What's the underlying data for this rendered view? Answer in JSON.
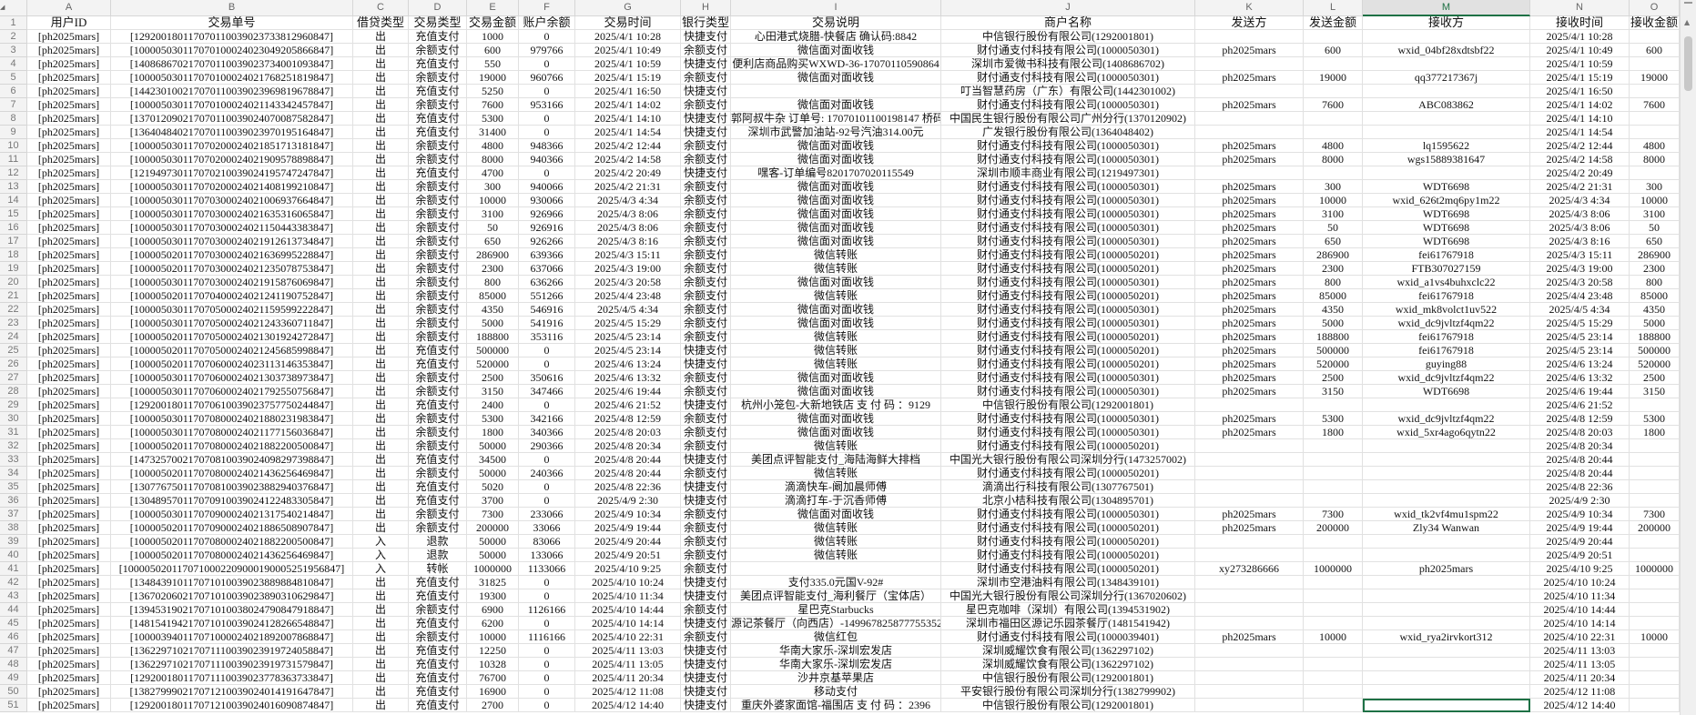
{
  "sheet": {
    "selected_column": "M",
    "accent_color": "#1e7145",
    "column_letters": [
      "A",
      "B",
      "C",
      "D",
      "E",
      "F",
      "G",
      "H",
      "I",
      "J",
      "K",
      "L",
      "M",
      "N",
      "O"
    ],
    "headers": [
      "用户ID",
      "交易单号",
      "借贷类型",
      "交易类型",
      "交易金额",
      "账户余额",
      "交易时间",
      "银行类型",
      "交易说明",
      "商户名称",
      "发送方",
      "发送金额",
      "接收方",
      "接收时间",
      "接收金额"
    ],
    "rows": [
      [
        "[ph2025mars]",
        "[129200180117070110039023733812960847]",
        "出",
        "充值支付",
        "1000",
        "0",
        "2025/4/1 10:28",
        "快捷支付",
        "心田港式烧腊-快餐店 确认码:8842",
        "中信银行股份有限公司(1292001801)",
        "",
        "",
        "",
        "2025/4/1 10:28",
        ""
      ],
      [
        "[ph2025mars]",
        "[100005030117070100024023049205866847]",
        "出",
        "余额支付",
        "600",
        "979766",
        "2025/4/1 10:49",
        "余额支付",
        "微信面对面收钱",
        "财付通支付科技有限公司(1000050301)",
        "ph2025mars",
        "600",
        "wxid_04bf28xdtsbf22",
        "2025/4/1 10:49",
        "600"
      ],
      [
        "[ph2025mars]",
        "[140868670217070110039023734001093847]",
        "出",
        "充值支付",
        "550",
        "0",
        "2025/4/1 10:59",
        "快捷支付",
        "便利店商品购买WXWD-36-17070110590864",
        "深圳市爱微书科技有限公司(1408686702)",
        "",
        "",
        "",
        "2025/4/1 10:59",
        ""
      ],
      [
        "[ph2025mars]",
        "[100005030117070100024021768251819847]",
        "出",
        "余额支付",
        "19000",
        "960766",
        "2025/4/1 15:19",
        "余额支付",
        "微信面对面收钱",
        "财付通支付科技有限公司(1000050301)",
        "ph2025mars",
        "19000",
        "qq377217367j",
        "2025/4/1 15:19",
        "19000"
      ],
      [
        "[ph2025mars]",
        "[144230100217070110039023969819678847]",
        "出",
        "充值支付",
        "5250",
        "0",
        "2025/4/1 16:50",
        "快捷支付",
        "",
        "叮当智慧药房（广东）有限公司(1442301002)",
        "",
        "",
        "",
        "2025/4/1 16:50",
        ""
      ],
      [
        "[ph2025mars]",
        "[100005030117070100024021143342457847]",
        "出",
        "余额支付",
        "7600",
        "953166",
        "2025/4/1 14:02",
        "余额支付",
        "微信面对面收钱",
        "财付通支付科技有限公司(1000050301)",
        "ph2025mars",
        "7600",
        "ABC083862",
        "2025/4/1 14:02",
        "7600"
      ],
      [
        "[ph2025mars]",
        "[137012090217070110039024070087582847]",
        "出",
        "充值支付",
        "5300",
        "0",
        "2025/4/1 14:10",
        "快捷支付",
        "郭阿叔牛杂 订单号: 17070101100198147 桥码",
        "中国民生银行股份有限公司广州分行(1370120902)",
        "",
        "",
        "",
        "2025/4/1 14:10",
        ""
      ],
      [
        "[ph2025mars]",
        "[136404840217070110039023970195164847]",
        "出",
        "充值支付",
        "31400",
        "0",
        "2025/4/1 14:54",
        "快捷支付",
        "深圳市武警加油站-92号汽油314.00元",
        "广发银行股份有限公司(1364048402)",
        "",
        "",
        "",
        "2025/4/1 14:54",
        ""
      ],
      [
        "[ph2025mars]",
        "[100005030117070200024021851713181847]",
        "出",
        "余额支付",
        "4800",
        "948366",
        "2025/4/2 12:44",
        "余额支付",
        "微信面对面收钱",
        "财付通支付科技有限公司(1000050301)",
        "ph2025mars",
        "4800",
        "lq1595622",
        "2025/4/2 12:44",
        "4800"
      ],
      [
        "[ph2025mars]",
        "[100005030117070200024021909578898847]",
        "出",
        "余额支付",
        "8000",
        "940366",
        "2025/4/2 14:58",
        "余额支付",
        "微信面对面收钱",
        "财付通支付科技有限公司(1000050301)",
        "ph2025mars",
        "8000",
        "wgs15889381647",
        "2025/4/2 14:58",
        "8000"
      ],
      [
        "[ph2025mars]",
        "[121949730117070210039024195747247847]",
        "出",
        "充值支付",
        "4700",
        "0",
        "2025/4/2 20:49",
        "快捷支付",
        "嘿客-订单编号8201707020115549",
        "深圳市顺丰商业有限公司(1219497301)",
        "",
        "",
        "",
        "2025/4/2 20:49",
        ""
      ],
      [
        "[ph2025mars]",
        "[100005030117070200024021408199210847]",
        "出",
        "余额支付",
        "300",
        "940066",
        "2025/4/2 21:31",
        "余额支付",
        "微信面对面收钱",
        "财付通支付科技有限公司(1000050301)",
        "ph2025mars",
        "300",
        "WDT6698",
        "2025/4/2 21:31",
        "300"
      ],
      [
        "[ph2025mars]",
        "[100005030117070300024021006937664847]",
        "出",
        "余额支付",
        "10000",
        "930066",
        "2025/4/3 4:34",
        "余额支付",
        "微信面对面收钱",
        "财付通支付科技有限公司(1000050301)",
        "ph2025mars",
        "10000",
        "wxid_626t2mq6py1m22",
        "2025/4/3 4:34",
        "10000"
      ],
      [
        "[ph2025mars]",
        "[100005030117070300024021635316065847]",
        "出",
        "余额支付",
        "3100",
        "926966",
        "2025/4/3 8:06",
        "余额支付",
        "微信面对面收钱",
        "财付通支付科技有限公司(1000050301)",
        "ph2025mars",
        "3100",
        "WDT6698",
        "2025/4/3 8:06",
        "3100"
      ],
      [
        "[ph2025mars]",
        "[100005030117070300024021150443383847]",
        "出",
        "余额支付",
        "50",
        "926916",
        "2025/4/3 8:06",
        "余额支付",
        "微信面对面收钱",
        "财付通支付科技有限公司(1000050301)",
        "ph2025mars",
        "50",
        "WDT6698",
        "2025/4/3 8:06",
        "50"
      ],
      [
        "[ph2025mars]",
        "[100005030117070300024021912613734847]",
        "出",
        "余额支付",
        "650",
        "926266",
        "2025/4/3 8:16",
        "余额支付",
        "微信面对面收钱",
        "财付通支付科技有限公司(1000050301)",
        "ph2025mars",
        "650",
        "WDT6698",
        "2025/4/3 8:16",
        "650"
      ],
      [
        "[ph2025mars]",
        "[100005020117070300024021636995228847]",
        "出",
        "余额支付",
        "286900",
        "639366",
        "2025/4/3 15:11",
        "余额支付",
        "微信转账",
        "财付通支付科技有限公司(1000050201)",
        "ph2025mars",
        "286900",
        "fei61767918",
        "2025/4/3 15:11",
        "286900"
      ],
      [
        "[ph2025mars]",
        "[100005020117070300024021235078753847]",
        "出",
        "余额支付",
        "2300",
        "637066",
        "2025/4/3 19:00",
        "余额支付",
        "微信转账",
        "财付通支付科技有限公司(1000050201)",
        "ph2025mars",
        "2300",
        "FTB307027159",
        "2025/4/3 19:00",
        "2300"
      ],
      [
        "[ph2025mars]",
        "[100005030117070300024021915876069847]",
        "出",
        "余额支付",
        "800",
        "636266",
        "2025/4/3 20:58",
        "余额支付",
        "微信面对面收钱",
        "财付通支付科技有限公司(1000050301)",
        "ph2025mars",
        "800",
        "wxid_a1vs4buhxclc22",
        "2025/4/3 20:58",
        "800"
      ],
      [
        "[ph2025mars]",
        "[100005020117070400024021241190752847]",
        "出",
        "余额支付",
        "85000",
        "551266",
        "2025/4/4 23:48",
        "余额支付",
        "微信转账",
        "财付通支付科技有限公司(1000050201)",
        "ph2025mars",
        "85000",
        "fei61767918",
        "2025/4/4 23:48",
        "85000"
      ],
      [
        "[ph2025mars]",
        "[100005030117070500024021159599222847]",
        "出",
        "余额支付",
        "4350",
        "546916",
        "2025/4/5 4:34",
        "余额支付",
        "微信面对面收钱",
        "财付通支付科技有限公司(1000050301)",
        "ph2025mars",
        "4350",
        "wxid_mk8volct1uv522",
        "2025/4/5 4:34",
        "4350"
      ],
      [
        "[ph2025mars]",
        "[100005030117070500024021243360711847]",
        "出",
        "余额支付",
        "5000",
        "541916",
        "2025/4/5 15:29",
        "余额支付",
        "微信面对面收钱",
        "财付通支付科技有限公司(1000050301)",
        "ph2025mars",
        "5000",
        "wxid_dc9jvltzf4qm22",
        "2025/4/5 15:29",
        "5000"
      ],
      [
        "[ph2025mars]",
        "[100005020117070500024021301924272847]",
        "出",
        "余额支付",
        "188800",
        "353116",
        "2025/4/5 23:14",
        "余额支付",
        "微信转账",
        "财付通支付科技有限公司(1000050201)",
        "ph2025mars",
        "188800",
        "fei61767918",
        "2025/4/5 23:14",
        "188800"
      ],
      [
        "[ph2025mars]",
        "[100005020117070500024021245685998847]",
        "出",
        "充值支付",
        "500000",
        "0",
        "2025/4/5 23:14",
        "快捷支付",
        "微信转账",
        "财付通支付科技有限公司(1000050201)",
        "ph2025mars",
        "500000",
        "fei61767918",
        "2025/4/5 23:14",
        "500000"
      ],
      [
        "[ph2025mars]",
        "[100005020117070600024023113146353847]",
        "出",
        "充值支付",
        "520000",
        "0",
        "2025/4/6 13:24",
        "快捷支付",
        "微信转账",
        "财付通支付科技有限公司(1000050201)",
        "ph2025mars",
        "520000",
        "guying88",
        "2025/4/6 13:24",
        "520000"
      ],
      [
        "[ph2025mars]",
        "[100005030117070600024021303738973847]",
        "出",
        "余额支付",
        "2500",
        "350616",
        "2025/4/6 13:32",
        "余额支付",
        "微信面对面收钱",
        "财付通支付科技有限公司(1000050301)",
        "ph2025mars",
        "2500",
        "wxid_dc9jvltzf4qm22",
        "2025/4/6 13:32",
        "2500"
      ],
      [
        "[ph2025mars]",
        "[100005030117070600024021792550756847]",
        "出",
        "余额支付",
        "3150",
        "347466",
        "2025/4/6 19:44",
        "余额支付",
        "微信面对面收钱",
        "财付通支付科技有限公司(1000050301)",
        "ph2025mars",
        "3150",
        "WDT6698",
        "2025/4/6 19:44",
        "3150"
      ],
      [
        "[ph2025mars]",
        "[129200180117070610039023757750244847]",
        "出",
        "充值支付",
        "2400",
        "0",
        "2025/4/6 21:52",
        "快捷支付",
        "杭州小笼包-大新地铁店 支 付 码 ：9129",
        "中信银行股份有限公司(1292001801)",
        "",
        "",
        "",
        "2025/4/6 21:52",
        ""
      ],
      [
        "[ph2025mars]",
        "[100005030117070800024021880231983847]",
        "出",
        "余额支付",
        "5300",
        "342166",
        "2025/4/8 12:59",
        "余额支付",
        "微信面对面收钱",
        "财付通支付科技有限公司(1000050301)",
        "ph2025mars",
        "5300",
        "wxid_dc9jvltzf4qm22",
        "2025/4/8 12:59",
        "5300"
      ],
      [
        "[ph2025mars]",
        "[100005030117070800024021177156036847]",
        "出",
        "余额支付",
        "1800",
        "340366",
        "2025/4/8 20:03",
        "余额支付",
        "微信面对面收钱",
        "财付通支付科技有限公司(1000050301)",
        "ph2025mars",
        "1800",
        "wxid_5xr4ago6qytn22",
        "2025/4/8 20:03",
        "1800"
      ],
      [
        "[ph2025mars]",
        "[100005020117070800024021882200500847]",
        "出",
        "余额支付",
        "50000",
        "290366",
        "2025/4/8 20:34",
        "余额支付",
        "微信转账",
        "财付通支付科技有限公司(1000050201)",
        "",
        "",
        "",
        "2025/4/8 20:34",
        ""
      ],
      [
        "[ph2025mars]",
        "[147325700217070810039024098297398847]",
        "出",
        "充值支付",
        "34500",
        "0",
        "2025/4/8 20:44",
        "快捷支付",
        "美团点评智能支付_海陆海鲜大排档",
        "中国光大银行股份有限公司深圳分行(1473257002)",
        "",
        "",
        "",
        "2025/4/8 20:44",
        ""
      ],
      [
        "[ph2025mars]",
        "[100005020117070800024021436256469847]",
        "出",
        "余额支付",
        "50000",
        "240366",
        "2025/4/8 20:44",
        "余额支付",
        "微信转账",
        "财付通支付科技有限公司(1000050201)",
        "",
        "",
        "",
        "2025/4/8 20:44",
        ""
      ],
      [
        "[ph2025mars]",
        "[130776750117070810039023882940376847]",
        "出",
        "充值支付",
        "5020",
        "0",
        "2025/4/8 22:36",
        "快捷支付",
        "滴滴快车-阚加晨师傅",
        "滴滴出行科技有限公司(1307767501)",
        "",
        "",
        "",
        "2025/4/8 22:36",
        ""
      ],
      [
        "[ph2025mars]",
        "[130489570117070910039024122483305847]",
        "出",
        "充值支付",
        "3700",
        "0",
        "2025/4/9 2:30",
        "快捷支付",
        "滴滴打车-于沉香师傅",
        "北京小桔科技有限公司(1304895701)",
        "",
        "",
        "",
        "2025/4/9 2:30",
        ""
      ],
      [
        "[ph2025mars]",
        "[100005030117070900024021317540214847]",
        "出",
        "余额支付",
        "7300",
        "233066",
        "2025/4/9 10:34",
        "余额支付",
        "微信面对面收钱",
        "财付通支付科技有限公司(1000050301)",
        "ph2025mars",
        "7300",
        "wxid_tk2vf4mu1spm22",
        "2025/4/9 10:34",
        "7300"
      ],
      [
        "[ph2025mars]",
        "[100005020117070900024021886508907847]",
        "出",
        "余额支付",
        "200000",
        "33066",
        "2025/4/9 19:44",
        "余额支付",
        "微信转账",
        "财付通支付科技有限公司(1000050201)",
        "ph2025mars",
        "200000",
        "Zly34 Wanwan",
        "2025/4/9 19:44",
        "200000"
      ],
      [
        "[ph2025mars]",
        "[100005020117070800024021882200500847]",
        "入",
        "退款",
        "50000",
        "83066",
        "2025/4/9 20:44",
        "余额支付",
        "微信转账",
        "财付通支付科技有限公司(1000050201)",
        "",
        "",
        "",
        "2025/4/9 20:44",
        ""
      ],
      [
        "[ph2025mars]",
        "[100005020117070800024021436256469847]",
        "入",
        "退款",
        "50000",
        "133066",
        "2025/4/9 20:51",
        "余额支付",
        "微信转账",
        "财付通支付科技有限公司(1000050201)",
        "",
        "",
        "",
        "2025/4/9 20:51",
        ""
      ],
      [
        "[ph2025mars]",
        "[1000050201170710002209000190005251956847]",
        "入",
        "转帐",
        "1000000",
        "1133066",
        "2025/4/10 9:25",
        "余额支付",
        "",
        "财付通支付科技有限公司(1000050201)",
        "xy273286666",
        "1000000",
        "ph2025mars",
        "2025/4/10 9:25",
        "1000000"
      ],
      [
        "[ph2025mars]",
        "[134843910117071010039023889884810847]",
        "出",
        "充值支付",
        "31825",
        "0",
        "2025/4/10 10:24",
        "快捷支付",
        "支付335.0元国V-92#",
        "深圳市空港油料有限公司(1348439101)",
        "",
        "",
        "",
        "2025/4/10 10:24",
        ""
      ],
      [
        "[ph2025mars]",
        "[136702060217071010039023890310629847]",
        "出",
        "充值支付",
        "19300",
        "0",
        "2025/4/10 11:34",
        "快捷支付",
        "美团点评智能支付_海利餐厅（宝体店）",
        "中国光大银行股份有限公司深圳分行(1367020602)",
        "",
        "",
        "",
        "2025/4/10 11:34",
        ""
      ],
      [
        "[ph2025mars]",
        "[139453190217071010038024790847918847]",
        "出",
        "余额支付",
        "6900",
        "1126166",
        "2025/4/10 14:44",
        "余额支付",
        "星巴克Starbucks",
        "星巴克咖啡（深圳）有限公司(1394531902)",
        "",
        "",
        "",
        "2025/4/10 14:44",
        ""
      ],
      [
        "[ph2025mars]",
        "[148154194217071010039024128266548847]",
        "出",
        "充值支付",
        "6200",
        "0",
        "2025/4/10 14:14",
        "快捷支付",
        "源记茶餐厅（向西店）-149967825877755352",
        "深圳市福田区源记乐园茶餐厅(1481541942)",
        "",
        "",
        "",
        "2025/4/10 14:14",
        ""
      ],
      [
        "[ph2025mars]",
        "[100003940117071000024021892007868847]",
        "出",
        "余额支付",
        "10000",
        "1116166",
        "2025/4/10 22:31",
        "余额支付",
        "微信红包",
        "财付通支付科技有限公司(1000039401)",
        "ph2025mars",
        "10000",
        "wxid_rya2irvkort312",
        "2025/4/10 22:31",
        "10000"
      ],
      [
        "[ph2025mars]",
        "[136229710217071110039023919724058847]",
        "出",
        "充值支付",
        "12250",
        "0",
        "2025/4/11 13:03",
        "快捷支付",
        "华南大家乐-深圳宏发店",
        "深圳威耀饮食有限公司(1362297102)",
        "",
        "",
        "",
        "2025/4/11 13:03",
        ""
      ],
      [
        "[ph2025mars]",
        "[136229710217071110039023919731579847]",
        "出",
        "充值支付",
        "10328",
        "0",
        "2025/4/11 13:05",
        "快捷支付",
        "华南大家乐-深圳宏发店",
        "深圳威耀饮食有限公司(1362297102)",
        "",
        "",
        "",
        "2025/4/11 13:05",
        ""
      ],
      [
        "[ph2025mars]",
        "[129200180117071110039023778363733847]",
        "出",
        "充值支付",
        "76700",
        "0",
        "2025/4/11 20:34",
        "快捷支付",
        "沙井京基苹果店",
        "中信银行股份有限公司(1292001801)",
        "",
        "",
        "",
        "2025/4/11 20:34",
        ""
      ],
      [
        "[ph2025mars]",
        "[138279990217071210039024014191647847]",
        "出",
        "充值支付",
        "16900",
        "0",
        "2025/4/12 11:08",
        "快捷支付",
        "移动支付",
        "平安银行股份有限公司深圳分行(1382799902)",
        "",
        "",
        "",
        "2025/4/12 11:08",
        ""
      ],
      [
        "[ph2025mars]",
        "[129200180117071210039024016090874847]",
        "出",
        "充值支付",
        "2700",
        "0",
        "2025/4/12 14:40",
        "快捷支付",
        "重庆外婆家面馆-福围店 支 付 码 ：2396",
        "中信银行股份有限公司(1292001801)",
        "",
        "",
        "",
        "2025/4/12 14:40",
        ""
      ]
    ]
  }
}
